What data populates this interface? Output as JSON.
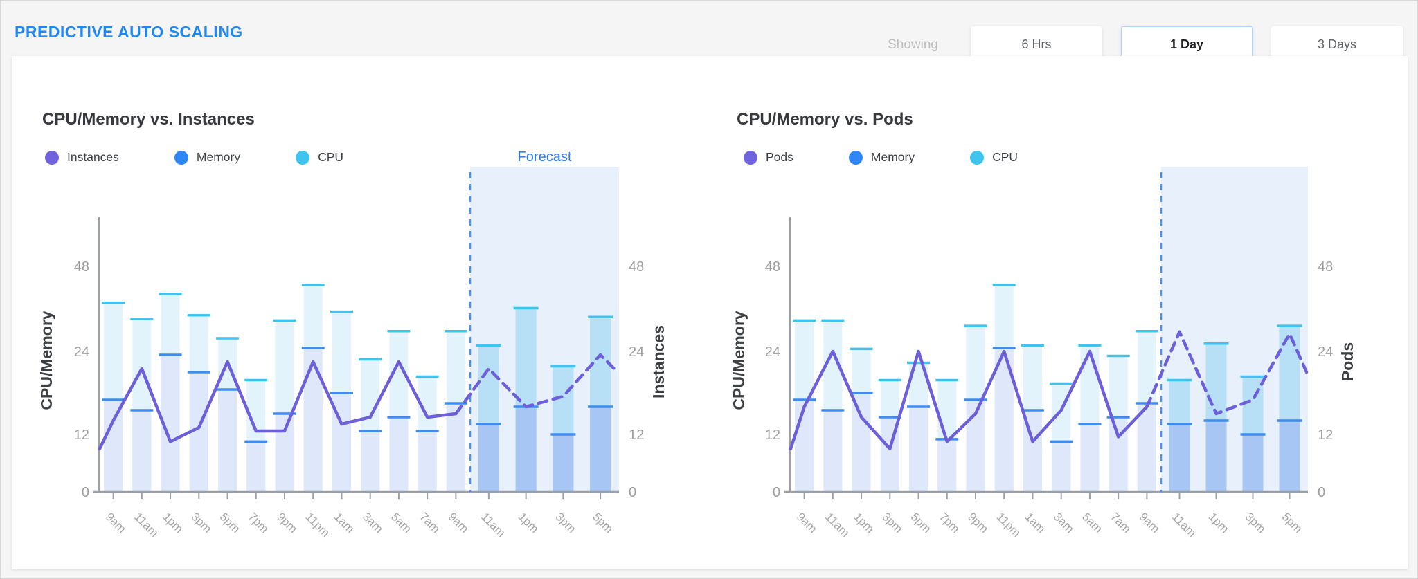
{
  "page": {
    "title": "PREDICTIVE AUTO SCALING",
    "showing_label": "Showing",
    "time_buttons": [
      {
        "label": "6 Hrs",
        "selected": false
      },
      {
        "label": "1 Day",
        "selected": true
      },
      {
        "label": "3 Days",
        "selected": false
      }
    ]
  },
  "colors": {
    "accent_blue": "#1E88F8",
    "purple": "#7063DE",
    "memory_blue": "#2E86F7",
    "cpu_cyan": "#3EC4EE",
    "hist_cpu_fill": "#E2F3FC",
    "hist_mem_fill": "#DEE8FA",
    "forecast_cpu_fill": "#B7DFF6",
    "forecast_mem_fill": "#A8C6F4",
    "forecast_band": "#E7F0FB",
    "boundary_blue": "#4A90F5",
    "axis_gray": "#9E9E9E",
    "forecast_label_blue": "#2D7FF0"
  },
  "chart_data": [
    {
      "type": "bar",
      "title": "CPU/Memory vs. Instances",
      "legend": [
        {
          "name": "Instances",
          "color_key": "purple"
        },
        {
          "name": "Memory",
          "color_key": "memory_blue"
        },
        {
          "name": "CPU",
          "color_key": "cpu_cyan"
        }
      ],
      "left_axis_label": "CPU/Memory",
      "right_axis_label": "Instances",
      "forecast_label": "Forecast",
      "y_ticks": [
        0,
        12,
        24,
        48
      ],
      "forecast_start_index": 13,
      "categories": [
        "9am",
        "11am",
        "1pm",
        "3pm",
        "5pm",
        "7pm",
        "9pm",
        "11pm",
        "1am",
        "3am",
        "5am",
        "7am",
        "9am",
        "11am",
        "1pm",
        "3pm",
        "5pm"
      ],
      "series": [
        {
          "name": "CPU",
          "values": [
            38,
            33.5,
            40.5,
            34.5,
            28,
            20,
            33,
            43,
            35.5,
            23,
            30,
            20.5,
            30,
            26,
            36.5,
            22,
            34
          ]
        },
        {
          "name": "Memory",
          "values": [
            17,
            15.5,
            23.5,
            21,
            18.5,
            10.5,
            15,
            25,
            18,
            12.5,
            14.5,
            12.5,
            16.5,
            13.5,
            16,
            12,
            16
          ]
        },
        {
          "name": "Instances",
          "values": [
            14,
            21.5,
            10.5,
            13,
            22.5,
            12.5,
            12.5,
            22.5,
            13.5,
            14.5,
            22.5,
            14.5,
            15,
            21.5,
            16,
            17.5,
            23.5
          ],
          "edge_start": 9,
          "edge_end": 21
        }
      ]
    },
    {
      "type": "bar",
      "title": "CPU/Memory vs. Pods",
      "legend": [
        {
          "name": "Pods",
          "color_key": "purple"
        },
        {
          "name": "Memory",
          "color_key": "memory_blue"
        },
        {
          "name": "CPU",
          "color_key": "cpu_cyan"
        }
      ],
      "left_axis_label": "CPU/Memory",
      "right_axis_label": "Pods",
      "forecast_label": "",
      "y_ticks": [
        0,
        12,
        24,
        48
      ],
      "forecast_start_index": 13,
      "categories": [
        "9am",
        "11am",
        "1pm",
        "3pm",
        "5pm",
        "7pm",
        "9pm",
        "11pm",
        "1am",
        "3am",
        "5am",
        "7am",
        "9am",
        "11am",
        "1pm",
        "3pm",
        "5pm"
      ],
      "series": [
        {
          "name": "CPU",
          "values": [
            33,
            33,
            25,
            20,
            22.5,
            20,
            31.5,
            43,
            26,
            19.5,
            26,
            23.5,
            30,
            20,
            26.5,
            20.5,
            31.5
          ]
        },
        {
          "name": "Memory",
          "values": [
            17,
            15.5,
            18,
            14.5,
            16,
            11,
            17,
            25,
            15.5,
            10.5,
            13.5,
            14.5,
            16.5,
            13.5,
            14,
            12,
            14
          ]
        },
        {
          "name": "Pods",
          "values": [
            16,
            24,
            14.5,
            9,
            24,
            10.5,
            15,
            24,
            10.5,
            15.5,
            24,
            11.5,
            16,
            29.5,
            15,
            17,
            29
          ],
          "edge_start": 9,
          "edge_end": 21
        }
      ]
    }
  ]
}
